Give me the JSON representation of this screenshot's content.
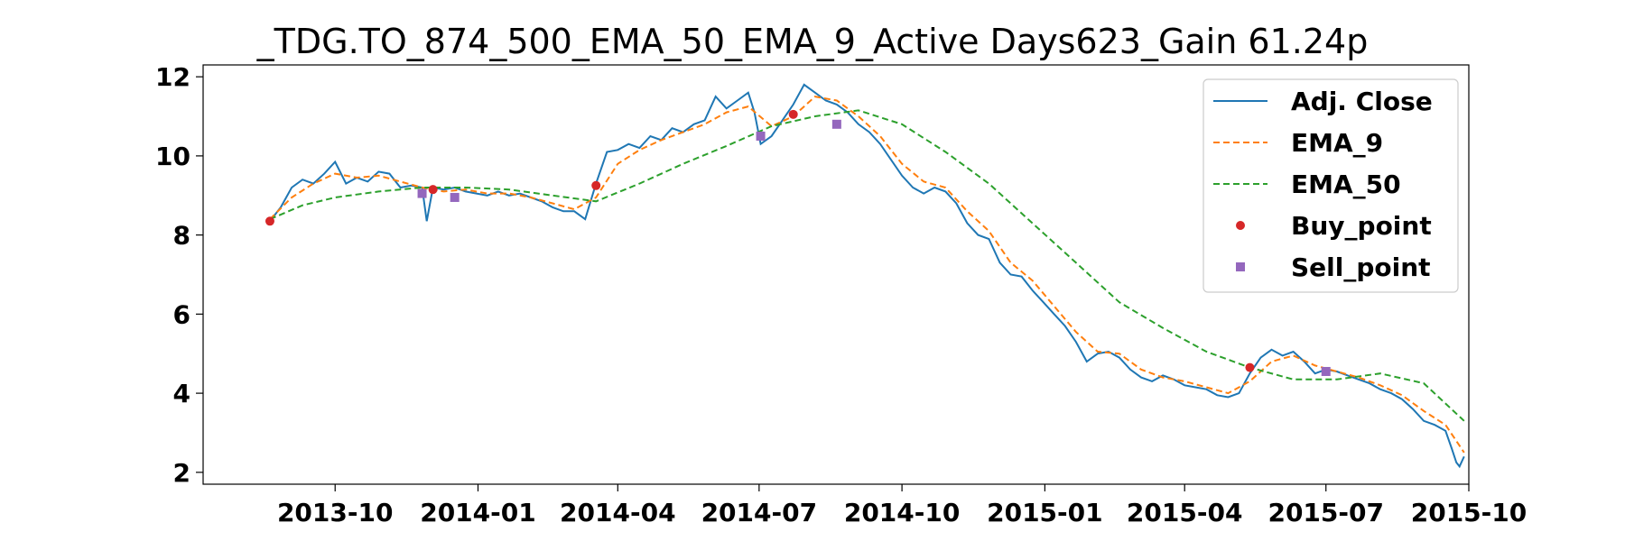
{
  "chart_data": {
    "type": "line",
    "title": "_TDG.TO_874_500_EMA_50_EMA_9_Active Days623_Gain  61.24p",
    "xlabel": "",
    "ylabel": "",
    "xlim": [
      "2013-07-08",
      "2015-10-01"
    ],
    "ylim": [
      1.7,
      12.3
    ],
    "x_ticks": [
      "2013-10",
      "2014-01",
      "2014-04",
      "2014-07",
      "2014-10",
      "2015-01",
      "2015-04",
      "2015-07",
      "2015-10"
    ],
    "y_ticks": [
      2,
      4,
      6,
      8,
      10,
      12
    ],
    "grid": false,
    "legend_position": "top-right",
    "series": [
      {
        "name": "Adj. Close",
        "style": "solid",
        "color": "#1f77b4",
        "points": [
          [
            "2013-08-20",
            8.35
          ],
          [
            "2013-08-27",
            8.7
          ],
          [
            "2013-09-03",
            9.2
          ],
          [
            "2013-09-10",
            9.4
          ],
          [
            "2013-09-17",
            9.3
          ],
          [
            "2013-09-24",
            9.55
          ],
          [
            "2013-10-01",
            9.85
          ],
          [
            "2013-10-08",
            9.3
          ],
          [
            "2013-10-15",
            9.45
          ],
          [
            "2013-10-22",
            9.35
          ],
          [
            "2013-10-29",
            9.6
          ],
          [
            "2013-11-05",
            9.55
          ],
          [
            "2013-11-12",
            9.2
          ],
          [
            "2013-11-19",
            9.25
          ],
          [
            "2013-11-26",
            9.2
          ],
          [
            "2013-11-29",
            8.35
          ],
          [
            "2013-12-03",
            9.2
          ],
          [
            "2013-12-10",
            9.15
          ],
          [
            "2013-12-17",
            9.2
          ],
          [
            "2013-12-24",
            9.1
          ],
          [
            "2013-12-31",
            9.05
          ],
          [
            "2014-01-07",
            9.0
          ],
          [
            "2014-01-14",
            9.1
          ],
          [
            "2014-01-21",
            9.0
          ],
          [
            "2014-01-28",
            9.05
          ],
          [
            "2014-02-04",
            8.95
          ],
          [
            "2014-02-11",
            8.85
          ],
          [
            "2014-02-18",
            8.7
          ],
          [
            "2014-02-25",
            8.6
          ],
          [
            "2014-03-04",
            8.6
          ],
          [
            "2014-03-11",
            8.4
          ],
          [
            "2014-03-18",
            9.3
          ],
          [
            "2014-03-25",
            10.1
          ],
          [
            "2014-04-01",
            10.15
          ],
          [
            "2014-04-08",
            10.3
          ],
          [
            "2014-04-15",
            10.2
          ],
          [
            "2014-04-22",
            10.5
          ],
          [
            "2014-04-29",
            10.4
          ],
          [
            "2014-05-06",
            10.7
          ],
          [
            "2014-05-13",
            10.6
          ],
          [
            "2014-05-20",
            10.8
          ],
          [
            "2014-05-27",
            10.9
          ],
          [
            "2014-06-03",
            11.5
          ],
          [
            "2014-06-10",
            11.2
          ],
          [
            "2014-06-17",
            11.4
          ],
          [
            "2014-06-24",
            11.6
          ],
          [
            "2014-06-28",
            11.1
          ],
          [
            "2014-07-02",
            10.3
          ],
          [
            "2014-07-09",
            10.5
          ],
          [
            "2014-07-16",
            10.9
          ],
          [
            "2014-07-23",
            11.3
          ],
          [
            "2014-07-30",
            11.8
          ],
          [
            "2014-08-06",
            11.6
          ],
          [
            "2014-08-13",
            11.4
          ],
          [
            "2014-08-20",
            11.3
          ],
          [
            "2014-08-27",
            11.1
          ],
          [
            "2014-09-03",
            10.8
          ],
          [
            "2014-09-10",
            10.6
          ],
          [
            "2014-09-17",
            10.3
          ],
          [
            "2014-09-24",
            9.9
          ],
          [
            "2014-10-01",
            9.5
          ],
          [
            "2014-10-08",
            9.2
          ],
          [
            "2014-10-15",
            9.05
          ],
          [
            "2014-10-22",
            9.2
          ],
          [
            "2014-10-29",
            9.1
          ],
          [
            "2014-11-05",
            8.8
          ],
          [
            "2014-11-12",
            8.3
          ],
          [
            "2014-11-19",
            8.0
          ],
          [
            "2014-11-26",
            7.9
          ],
          [
            "2014-12-03",
            7.3
          ],
          [
            "2014-12-10",
            7.0
          ],
          [
            "2014-12-17",
            6.95
          ],
          [
            "2014-12-24",
            6.6
          ],
          [
            "2014-12-31",
            6.3
          ],
          [
            "2015-01-07",
            6.0
          ],
          [
            "2015-01-14",
            5.7
          ],
          [
            "2015-01-21",
            5.3
          ],
          [
            "2015-01-28",
            4.8
          ],
          [
            "2015-02-04",
            5.0
          ],
          [
            "2015-02-11",
            5.05
          ],
          [
            "2015-02-18",
            4.9
          ],
          [
            "2015-02-25",
            4.6
          ],
          [
            "2015-03-04",
            4.4
          ],
          [
            "2015-03-11",
            4.3
          ],
          [
            "2015-03-18",
            4.45
          ],
          [
            "2015-03-25",
            4.35
          ],
          [
            "2015-04-01",
            4.2
          ],
          [
            "2015-04-08",
            4.15
          ],
          [
            "2015-04-15",
            4.1
          ],
          [
            "2015-04-22",
            3.95
          ],
          [
            "2015-04-29",
            3.9
          ],
          [
            "2015-05-06",
            4.0
          ],
          [
            "2015-05-13",
            4.5
          ],
          [
            "2015-05-20",
            4.9
          ],
          [
            "2015-05-27",
            5.1
          ],
          [
            "2015-06-03",
            4.95
          ],
          [
            "2015-06-10",
            5.05
          ],
          [
            "2015-06-17",
            4.8
          ],
          [
            "2015-06-24",
            4.5
          ],
          [
            "2015-07-01",
            4.6
          ],
          [
            "2015-07-08",
            4.55
          ],
          [
            "2015-07-15",
            4.45
          ],
          [
            "2015-07-22",
            4.35
          ],
          [
            "2015-07-29",
            4.25
          ],
          [
            "2015-08-05",
            4.1
          ],
          [
            "2015-08-12",
            4.0
          ],
          [
            "2015-08-19",
            3.85
          ],
          [
            "2015-08-26",
            3.6
          ],
          [
            "2015-09-02",
            3.3
          ],
          [
            "2015-09-09",
            3.2
          ],
          [
            "2015-09-16",
            3.05
          ],
          [
            "2015-09-20",
            2.6
          ],
          [
            "2015-09-23",
            2.25
          ],
          [
            "2015-09-25",
            2.15
          ],
          [
            "2015-09-28",
            2.4
          ]
        ]
      },
      {
        "name": "EMA_9",
        "style": "dashed",
        "color": "#ff7f0e",
        "points": [
          [
            "2013-08-20",
            8.4
          ],
          [
            "2013-09-03",
            8.95
          ],
          [
            "2013-09-17",
            9.3
          ],
          [
            "2013-10-01",
            9.55
          ],
          [
            "2013-10-15",
            9.45
          ],
          [
            "2013-10-29",
            9.5
          ],
          [
            "2013-11-12",
            9.35
          ],
          [
            "2013-11-26",
            9.2
          ],
          [
            "2013-12-10",
            9.1
          ],
          [
            "2013-12-24",
            9.15
          ],
          [
            "2014-01-07",
            9.05
          ],
          [
            "2014-01-21",
            9.05
          ],
          [
            "2014-02-04",
            8.95
          ],
          [
            "2014-02-18",
            8.8
          ],
          [
            "2014-03-04",
            8.65
          ],
          [
            "2014-03-18",
            8.95
          ],
          [
            "2014-04-01",
            9.8
          ],
          [
            "2014-04-15",
            10.15
          ],
          [
            "2014-04-29",
            10.4
          ],
          [
            "2014-05-13",
            10.6
          ],
          [
            "2014-05-27",
            10.8
          ],
          [
            "2014-06-10",
            11.1
          ],
          [
            "2014-06-24",
            11.25
          ],
          [
            "2014-07-09",
            10.75
          ],
          [
            "2014-07-23",
            11.0
          ],
          [
            "2014-08-06",
            11.5
          ],
          [
            "2014-08-20",
            11.4
          ],
          [
            "2014-09-03",
            11.0
          ],
          [
            "2014-09-17",
            10.5
          ],
          [
            "2014-10-01",
            9.8
          ],
          [
            "2014-10-15",
            9.35
          ],
          [
            "2014-10-29",
            9.2
          ],
          [
            "2014-11-12",
            8.6
          ],
          [
            "2014-11-26",
            8.1
          ],
          [
            "2014-12-10",
            7.3
          ],
          [
            "2014-12-24",
            6.85
          ],
          [
            "2015-01-07",
            6.2
          ],
          [
            "2015-01-21",
            5.55
          ],
          [
            "2015-02-04",
            5.05
          ],
          [
            "2015-02-18",
            5.0
          ],
          [
            "2015-03-04",
            4.6
          ],
          [
            "2015-03-18",
            4.4
          ],
          [
            "2015-04-01",
            4.3
          ],
          [
            "2015-04-15",
            4.15
          ],
          [
            "2015-04-29",
            4.0
          ],
          [
            "2015-05-13",
            4.3
          ],
          [
            "2015-05-27",
            4.8
          ],
          [
            "2015-06-10",
            4.95
          ],
          [
            "2015-06-24",
            4.7
          ],
          [
            "2015-07-08",
            4.55
          ],
          [
            "2015-07-22",
            4.4
          ],
          [
            "2015-08-05",
            4.2
          ],
          [
            "2015-08-19",
            3.95
          ],
          [
            "2015-09-02",
            3.55
          ],
          [
            "2015-09-16",
            3.2
          ],
          [
            "2015-09-28",
            2.5
          ]
        ]
      },
      {
        "name": "EMA_50",
        "style": "dashed",
        "color": "#2ca02c",
        "points": [
          [
            "2013-08-20",
            8.4
          ],
          [
            "2013-09-10",
            8.75
          ],
          [
            "2013-10-01",
            8.95
          ],
          [
            "2013-10-29",
            9.1
          ],
          [
            "2013-11-26",
            9.2
          ],
          [
            "2013-12-24",
            9.2
          ],
          [
            "2014-01-21",
            9.15
          ],
          [
            "2014-02-18",
            9.0
          ],
          [
            "2014-03-18",
            8.85
          ],
          [
            "2014-04-15",
            9.3
          ],
          [
            "2014-05-13",
            9.8
          ],
          [
            "2014-06-10",
            10.25
          ],
          [
            "2014-07-09",
            10.75
          ],
          [
            "2014-08-06",
            11.0
          ],
          [
            "2014-09-03",
            11.15
          ],
          [
            "2014-10-01",
            10.8
          ],
          [
            "2014-10-29",
            10.1
          ],
          [
            "2014-11-26",
            9.3
          ],
          [
            "2014-12-24",
            8.3
          ],
          [
            "2015-01-21",
            7.3
          ],
          [
            "2015-02-18",
            6.3
          ],
          [
            "2015-03-18",
            5.65
          ],
          [
            "2015-04-15",
            5.05
          ],
          [
            "2015-05-13",
            4.65
          ],
          [
            "2015-06-10",
            4.35
          ],
          [
            "2015-07-08",
            4.35
          ],
          [
            "2015-08-05",
            4.5
          ],
          [
            "2015-09-02",
            4.25
          ],
          [
            "2015-09-28",
            3.3
          ]
        ]
      }
    ],
    "markers": [
      {
        "name": "Buy_point",
        "shape": "circle",
        "color": "#d62728",
        "points": [
          [
            "2013-08-20",
            8.35
          ],
          [
            "2013-12-03",
            9.15
          ],
          [
            "2014-03-18",
            9.25
          ],
          [
            "2014-07-23",
            11.05
          ],
          [
            "2015-05-13",
            4.65
          ]
        ]
      },
      {
        "name": "Sell_point",
        "shape": "square",
        "color": "#9467bd",
        "points": [
          [
            "2013-11-26",
            9.05
          ],
          [
            "2013-12-17",
            8.95
          ],
          [
            "2014-07-02",
            10.5
          ],
          [
            "2014-08-20",
            10.8
          ],
          [
            "2015-07-01",
            4.55
          ]
        ]
      }
    ]
  }
}
